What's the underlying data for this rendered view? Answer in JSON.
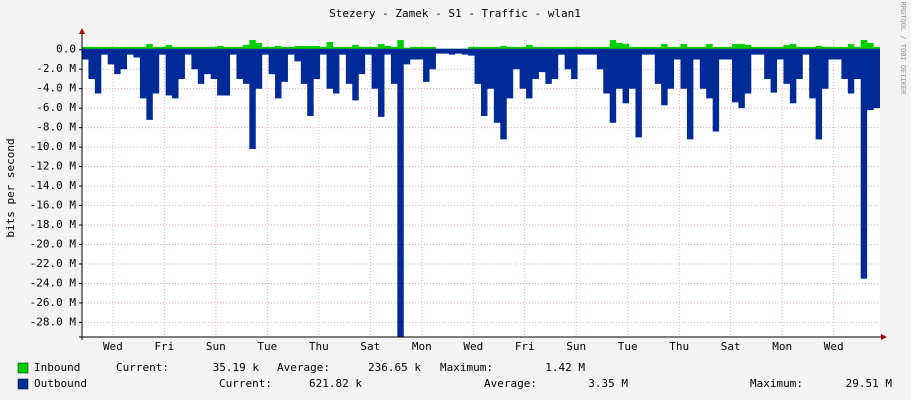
{
  "chart_data": {
    "type": "area",
    "title": "Stezery - Zamek - S1 - Traffic - wlan1",
    "y_label": "bits per second",
    "side_text": "RRDTOOL / TOBI OETIKER",
    "x": [
      0,
      0.25,
      0.5,
      0.75,
      1,
      1.25,
      1.5,
      1.75,
      2,
      2.25,
      2.5,
      2.75,
      3,
      3.25,
      3.5,
      3.75,
      4,
      4.25,
      4.5,
      4.75,
      5,
      5.25,
      5.5,
      5.75,
      6,
      6.25,
      6.5,
      6.75,
      7,
      7.25,
      7.5,
      7.75,
      8,
      8.25,
      8.5,
      8.75,
      9,
      9.25,
      9.5,
      9.75,
      10,
      10.25,
      10.5,
      10.75,
      11,
      11.25,
      11.5,
      11.75,
      12,
      12.25,
      12.5,
      12.75,
      13,
      13.25,
      13.5,
      13.75,
      14,
      14.25,
      14.5,
      14.75,
      15,
      15.25,
      15.5,
      15.75,
      16,
      16.25,
      16.5,
      16.75,
      17,
      17.25,
      17.5,
      17.75,
      18,
      18.25,
      18.5,
      18.75,
      19,
      19.25,
      19.5,
      19.75,
      20,
      20.25,
      20.5,
      20.75,
      21,
      21.25,
      21.5,
      21.75,
      22,
      22.25,
      22.5,
      22.75,
      23,
      23.25,
      23.5,
      23.75,
      24,
      24.25,
      24.5,
      24.75,
      25,
      25.25,
      25.5,
      25.75,
      26,
      26.25,
      26.5,
      26.75,
      27,
      27.25,
      27.5,
      27.75,
      28,
      28.25,
      28.5,
      28.75,
      29,
      29.25,
      29.5,
      29.75,
      30,
      30.25,
      30.5,
      30.75
    ],
    "series": [
      {
        "name": "Inbound",
        "color": "#00cf00",
        "values": [
          0.3,
          0.3,
          0.3,
          0.3,
          0.3,
          0.3,
          0.3,
          0.3,
          0.3,
          0.3,
          0.6,
          0.3,
          0.3,
          0.5,
          0.3,
          0.3,
          0.3,
          0.3,
          0.3,
          0.3,
          0.3,
          0.4,
          0.3,
          0.3,
          0.3,
          0.5,
          1.0,
          0.7,
          0.3,
          0.3,
          0.4,
          0.3,
          0.3,
          0.4,
          0.4,
          0.4,
          0.4,
          0.3,
          0.8,
          0.3,
          0.3,
          0.3,
          0.5,
          0.3,
          0.3,
          0.3,
          0.6,
          0.4,
          0.3,
          1.42,
          0.2,
          0.3,
          0.3,
          0.3,
          0.3,
          0.1,
          0.1,
          0.1,
          0.1,
          0.1,
          0.3,
          0.3,
          0.3,
          0.3,
          0.3,
          0.4,
          0.3,
          0.3,
          0.3,
          0.5,
          0.3,
          0.3,
          0.3,
          0.3,
          0.3,
          0.3,
          0.3,
          0.3,
          0.3,
          0.3,
          0.3,
          0.3,
          1.0,
          0.7,
          0.6,
          0.3,
          0.3,
          0.3,
          0.3,
          0.3,
          0.6,
          0.3,
          0.3,
          0.6,
          0.3,
          0.3,
          0.3,
          0.6,
          0.3,
          0.3,
          0.3,
          0.6,
          0.6,
          0.5,
          0.3,
          0.3,
          0.3,
          0.3,
          0.3,
          0.5,
          0.6,
          0.3,
          0.3,
          0.3,
          0.4,
          0.3,
          0.3,
          0.3,
          0.3,
          0.6,
          0.3,
          1.0,
          0.7,
          0.3
        ],
        "stats": [
          {
            "label": "Current:",
            "value": "35.19 k"
          },
          {
            "label": "Average:",
            "value": "236.65 k"
          },
          {
            "label": "Maximum:",
            "value": "1.42 M"
          }
        ]
      },
      {
        "name": "Outbound",
        "color": "#002a97",
        "values": [
          -1.0,
          -3.0,
          -4.5,
          -0.5,
          -1.5,
          -2.5,
          -2.0,
          -0.5,
          -0.8,
          -5.0,
          -7.2,
          -4.5,
          -0.5,
          -4.7,
          -5.0,
          -3.0,
          -0.5,
          -2.0,
          -3.5,
          -2.5,
          -3.0,
          -4.7,
          -4.7,
          -0.5,
          -3.0,
          -3.5,
          -10.2,
          -4.0,
          -0.5,
          -2.5,
          -5.0,
          -3.3,
          -0.5,
          -1.2,
          -3.5,
          -6.8,
          -3.0,
          -0.5,
          -4.0,
          -4.5,
          -0.5,
          -3.5,
          -5.2,
          -2.5,
          -0.5,
          -4.0,
          -6.9,
          -0.5,
          -3.5,
          -29.5,
          -1.5,
          -1.0,
          -1.0,
          -3.3,
          -2.0,
          -0.4,
          -0.4,
          -0.5,
          -0.4,
          -0.5,
          -0.6,
          -3.5,
          -6.8,
          -4.0,
          -7.5,
          -9.2,
          -5.0,
          -2.0,
          -4.0,
          -5.0,
          -3.0,
          -2.3,
          -3.5,
          -3.0,
          -0.5,
          -2.0,
          -3.0,
          -0.5,
          -0.5,
          -0.5,
          -2.0,
          -4.5,
          -7.5,
          -4.0,
          -5.5,
          -4.0,
          -9.0,
          -0.5,
          -0.5,
          -3.5,
          -5.7,
          -4.0,
          -1.0,
          -4.0,
          -9.2,
          -1.0,
          -4.0,
          -5.0,
          -8.4,
          -1.0,
          -1.0,
          -5.4,
          -6.0,
          -4.5,
          -0.5,
          -0.5,
          -3.0,
          -4.4,
          -1.0,
          -3.5,
          -5.5,
          -3.0,
          -0.5,
          -5.0,
          -9.2,
          -4.0,
          -1.0,
          -1.0,
          -3.0,
          -4.5,
          -3.0,
          -23.5,
          -6.2,
          -6.0
        ],
        "stats": [
          {
            "label": "Current:",
            "value": "621.82 k"
          },
          {
            "label": "Average:",
            "value": "3.35 M"
          },
          {
            "label": "Maximum:",
            "value": "29.51 M"
          }
        ]
      }
    ],
    "xlim": [
      0,
      31
    ],
    "xticks": [
      {
        "value": 1.2,
        "label": "Wed"
      },
      {
        "value": 3.2,
        "label": "Fri"
      },
      {
        "value": 5.2,
        "label": "Sun"
      },
      {
        "value": 7.2,
        "label": "Tue"
      },
      {
        "value": 9.2,
        "label": "Thu"
      },
      {
        "value": 11.2,
        "label": "Sat"
      },
      {
        "value": 13.2,
        "label": "Mon"
      },
      {
        "value": 15.2,
        "label": "Wed"
      },
      {
        "value": 17.2,
        "label": "Fri"
      },
      {
        "value": 19.2,
        "label": "Sun"
      },
      {
        "value": 21.2,
        "label": "Tue"
      },
      {
        "value": 23.2,
        "label": "Thu"
      },
      {
        "value": 25.2,
        "label": "Sat"
      },
      {
        "value": 27.2,
        "label": "Mon"
      },
      {
        "value": 29.2,
        "label": "Wed"
      }
    ],
    "ylim": [
      -29.5,
      1.0
    ],
    "yticks": [
      {
        "value": 0,
        "label": "0.0"
      },
      {
        "value": -2,
        "label": "-2.0 M"
      },
      {
        "value": -4,
        "label": "-4.0 M"
      },
      {
        "value": -6,
        "label": "-6.0 M"
      },
      {
        "value": -8,
        "label": "-8.0 M"
      },
      {
        "value": -10,
        "label": "-10.0 M"
      },
      {
        "value": -12,
        "label": "-12.0 M"
      },
      {
        "value": -14,
        "label": "-14.0 M"
      },
      {
        "value": -16,
        "label": "-16.0 M"
      },
      {
        "value": -18,
        "label": "-18.0 M"
      },
      {
        "value": -20,
        "label": "-20.0 M"
      },
      {
        "value": -22,
        "label": "-22.0 M"
      },
      {
        "value": -24,
        "label": "-24.0 M"
      },
      {
        "value": -26,
        "label": "-26.0 M"
      },
      {
        "value": -28,
        "label": "-28.0 M"
      }
    ],
    "grid": true
  }
}
